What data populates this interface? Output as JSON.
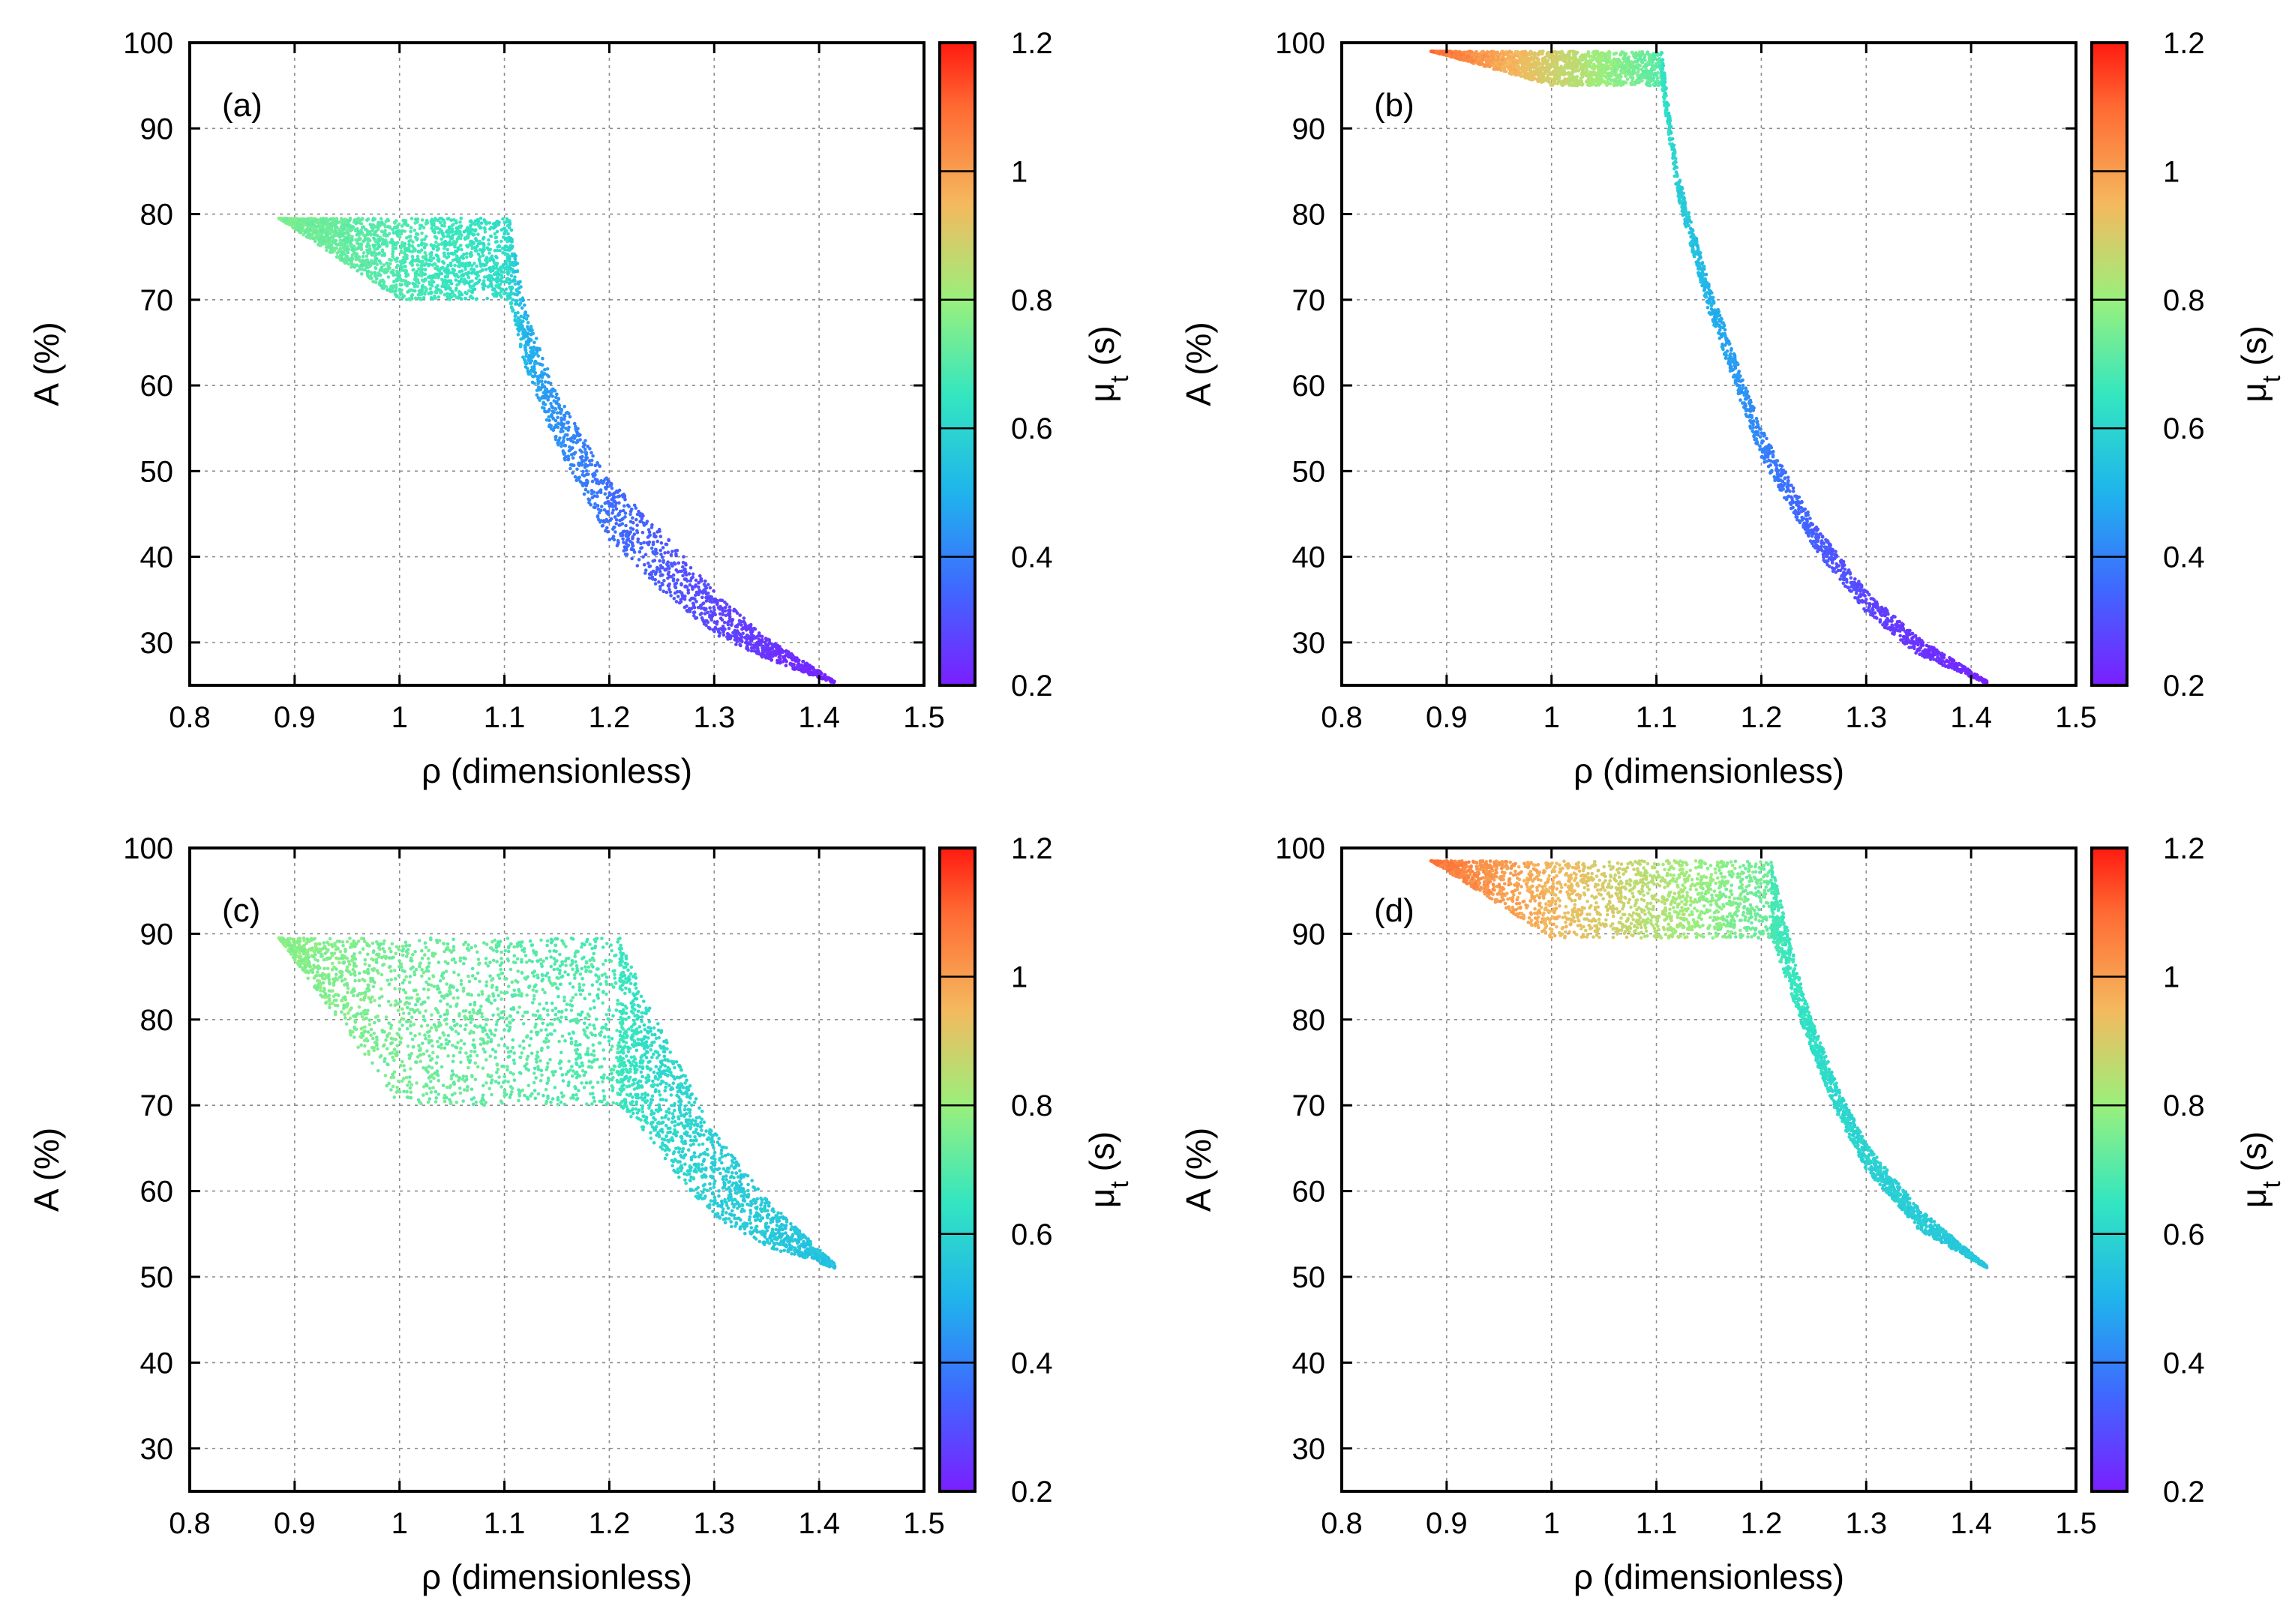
{
  "chart_data": [
    {
      "type": "scatter",
      "panel_label": "(a)",
      "xlabel": "ρ (dimensionless)",
      "ylabel": "A (%)",
      "colorbar_label": "μ_t (s)",
      "xlim": [
        0.8,
        1.5
      ],
      "ylim": [
        25,
        100
      ],
      "xticks": [
        0.8,
        0.9,
        1,
        1.1,
        1.2,
        1.3,
        1.4,
        1.5
      ],
      "xtick_labels": [
        "0.8",
        "0.9",
        "1",
        "1.1",
        "1.2",
        "1.3",
        "1.4",
        "1.5"
      ],
      "yticks": [
        30,
        40,
        50,
        60,
        70,
        80,
        90,
        100
      ],
      "ytick_labels": [
        "30",
        "40",
        "50",
        "60",
        "70",
        "80",
        "90",
        "100"
      ],
      "colorbar_range": [
        0.2,
        1.2
      ],
      "colorbar_ticks": [
        "0.2",
        "0.4",
        "0.6",
        "0.8",
        "1",
        "1.2"
      ],
      "grid": true,
      "region": {
        "plateau": {
          "rho_start": 0.885,
          "rho_end": 1.105,
          "A_upper": 79.5,
          "A_lower": 70.0,
          "slant_to_rho": 1.0,
          "mu_left": 0.76,
          "mu_right": 0.62
        },
        "tail": [
          {
            "rho": 1.105,
            "A_upper": 79.5,
            "A_lower": 70.0,
            "mu": 0.6
          },
          {
            "rho": 1.12,
            "A_upper": 69,
            "A_lower": 62,
            "mu": 0.5
          },
          {
            "rho": 1.15,
            "A_upper": 59,
            "A_lower": 53,
            "mu": 0.43
          },
          {
            "rho": 1.2,
            "A_upper": 49,
            "A_lower": 42,
            "mu": 0.36
          },
          {
            "rho": 1.25,
            "A_upper": 43,
            "A_lower": 36,
            "mu": 0.32
          },
          {
            "rho": 1.3,
            "A_upper": 36,
            "A_lower": 31,
            "mu": 0.28
          },
          {
            "rho": 1.35,
            "A_upper": 30.5,
            "A_lower": 28,
            "mu": 0.24
          },
          {
            "rho": 1.415,
            "A_upper": 25.5,
            "A_lower": 25.2,
            "mu": 0.21
          }
        ]
      }
    },
    {
      "type": "scatter",
      "panel_label": "(b)",
      "xlabel": "ρ (dimensionless)",
      "ylabel": "A (%)",
      "colorbar_label": "μ_t (s)",
      "xlim": [
        0.8,
        1.5
      ],
      "ylim": [
        25,
        100
      ],
      "xticks": [
        0.8,
        0.9,
        1,
        1.1,
        1.2,
        1.3,
        1.4,
        1.5
      ],
      "xtick_labels": [
        "0.8",
        "0.9",
        "1",
        "1.1",
        "1.2",
        "1.3",
        "1.4",
        "1.5"
      ],
      "yticks": [
        30,
        40,
        50,
        60,
        70,
        80,
        90,
        100
      ],
      "ytick_labels": [
        "30",
        "40",
        "50",
        "60",
        "70",
        "80",
        "90",
        "100"
      ],
      "colorbar_range": [
        0.2,
        1.2
      ],
      "colorbar_ticks": [
        "0.2",
        "0.4",
        "0.6",
        "0.8",
        "1",
        "1.2"
      ],
      "grid": true,
      "region": {
        "plateau": {
          "rho_start": 0.885,
          "rho_end": 1.105,
          "A_upper": 99.0,
          "A_lower": 95.0,
          "slant_to_rho": 1.0,
          "mu_left": 1.1,
          "mu_right": 0.7
        },
        "tail": [
          {
            "rho": 1.105,
            "A_upper": 99.0,
            "A_lower": 95.0,
            "mu": 0.65
          },
          {
            "rho": 1.12,
            "A_upper": 85,
            "A_lower": 82,
            "mu": 0.58
          },
          {
            "rho": 1.15,
            "A_upper": 72,
            "A_lower": 68.5,
            "mu": 0.5
          },
          {
            "rho": 1.2,
            "A_upper": 55,
            "A_lower": 51.5,
            "mu": 0.4
          },
          {
            "rho": 1.25,
            "A_upper": 44,
            "A_lower": 41,
            "mu": 0.33
          },
          {
            "rho": 1.3,
            "A_upper": 36,
            "A_lower": 33.5,
            "mu": 0.28
          },
          {
            "rho": 1.35,
            "A_upper": 30.5,
            "A_lower": 28.5,
            "mu": 0.24
          },
          {
            "rho": 1.415,
            "A_upper": 25.5,
            "A_lower": 25.2,
            "mu": 0.21
          }
        ]
      }
    },
    {
      "type": "scatter",
      "panel_label": "(c)",
      "xlabel": "ρ (dimensionless)",
      "ylabel": "A (%)",
      "colorbar_label": "μ_t (s)",
      "xlim": [
        0.8,
        1.5
      ],
      "ylim": [
        25,
        100
      ],
      "xticks": [
        0.8,
        0.9,
        1,
        1.1,
        1.2,
        1.3,
        1.4,
        1.5
      ],
      "xtick_labels": [
        "0.8",
        "0.9",
        "1",
        "1.1",
        "1.2",
        "1.3",
        "1.4",
        "1.5"
      ],
      "yticks": [
        30,
        40,
        50,
        60,
        70,
        80,
        90,
        100
      ],
      "ytick_labels": [
        "30",
        "40",
        "50",
        "60",
        "70",
        "80",
        "90",
        "100"
      ],
      "colorbar_range": [
        0.2,
        1.2
      ],
      "colorbar_ticks": [
        "0.2",
        "0.4",
        "0.6",
        "0.8",
        "1",
        "1.2"
      ],
      "grid": true,
      "region": {
        "plateau": {
          "rho_start": 0.885,
          "rho_end": 1.21,
          "A_upper": 89.5,
          "A_lower": 70.0,
          "slant_to_rho": 1.0,
          "mu_left": 0.78,
          "mu_right": 0.68
        },
        "tail": [
          {
            "rho": 1.21,
            "A_upper": 89.5,
            "A_lower": 70.0,
            "mu": 0.66
          },
          {
            "rho": 1.24,
            "A_upper": 81,
            "A_lower": 66,
            "mu": 0.62
          },
          {
            "rho": 1.27,
            "A_upper": 74,
            "A_lower": 61,
            "mu": 0.6
          },
          {
            "rho": 1.3,
            "A_upper": 67,
            "A_lower": 57,
            "mu": 0.58
          },
          {
            "rho": 1.35,
            "A_upper": 59,
            "A_lower": 53.5,
            "mu": 0.56
          },
          {
            "rho": 1.415,
            "A_upper": 51.5,
            "A_lower": 51.0,
            "mu": 0.54
          }
        ]
      }
    },
    {
      "type": "scatter",
      "panel_label": "(d)",
      "xlabel": "ρ (dimensionless)",
      "ylabel": "A (%)",
      "colorbar_label": "μ_t (s)",
      "xlim": [
        0.8,
        1.5
      ],
      "ylim": [
        25,
        100
      ],
      "xticks": [
        0.8,
        0.9,
        1,
        1.1,
        1.2,
        1.3,
        1.4,
        1.5
      ],
      "xtick_labels": [
        "0.8",
        "0.9",
        "1",
        "1.1",
        "1.2",
        "1.3",
        "1.4",
        "1.5"
      ],
      "yticks": [
        30,
        40,
        50,
        60,
        70,
        80,
        90,
        100
      ],
      "ytick_labels": [
        "30",
        "40",
        "50",
        "60",
        "70",
        "80",
        "90",
        "100"
      ],
      "colorbar_range": [
        0.2,
        1.2
      ],
      "colorbar_ticks": [
        "0.2",
        "0.4",
        "0.6",
        "0.8",
        "1",
        "1.2"
      ],
      "grid": true,
      "region": {
        "plateau": {
          "rho_start": 0.885,
          "rho_end": 1.21,
          "A_upper": 98.5,
          "A_lower": 89.5,
          "slant_to_rho": 1.0,
          "mu_left": 1.08,
          "mu_right": 0.72
        },
        "tail": [
          {
            "rho": 1.21,
            "A_upper": 98.0,
            "A_lower": 89.5,
            "mu": 0.68
          },
          {
            "rho": 1.24,
            "A_upper": 83,
            "A_lower": 79,
            "mu": 0.64
          },
          {
            "rho": 1.27,
            "A_upper": 73,
            "A_lower": 69.5,
            "mu": 0.61
          },
          {
            "rho": 1.3,
            "A_upper": 65.5,
            "A_lower": 62.5,
            "mu": 0.59
          },
          {
            "rho": 1.35,
            "A_upper": 58,
            "A_lower": 55.5,
            "mu": 0.57
          },
          {
            "rho": 1.415,
            "A_upper": 51.3,
            "A_lower": 51.0,
            "mu": 0.55
          }
        ]
      }
    }
  ]
}
